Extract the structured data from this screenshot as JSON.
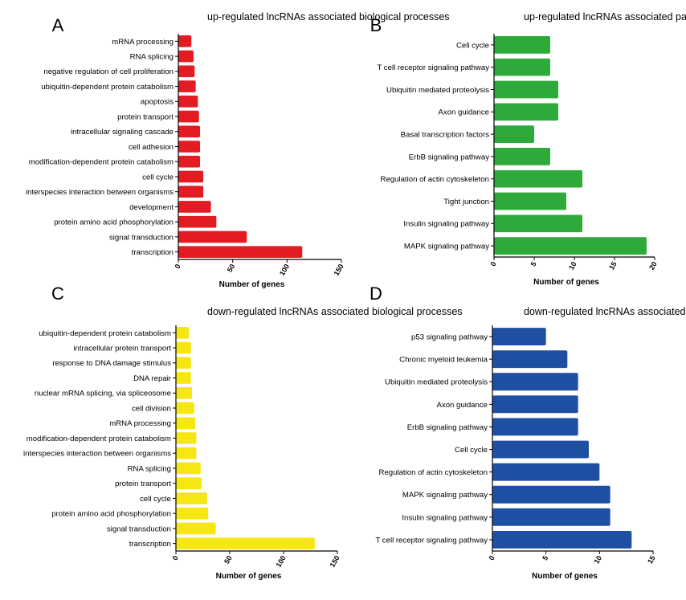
{
  "chart_data": [
    {
      "panel": "A",
      "type": "bar",
      "orientation": "horizontal",
      "title": "up-regulated lncRNAs associated biological processes",
      "xlabel": "Number of genes",
      "ylabel": "",
      "xlim": [
        0,
        150
      ],
      "xticks": [
        0,
        50,
        100,
        150
      ],
      "color": "#e31b23",
      "categories": [
        "mRNA processing",
        "RNA splicing",
        "negative regulation of cell proliferation",
        "ubiquitin-dependent protein catabolism",
        "apoptosis",
        "protein transport",
        "intracellular signaling cascade",
        "cell adhesion",
        "modification-dependent protein catabolism",
        "cell cycle",
        "interspecies interaction between organisms",
        "development",
        "protein amino acid phosphorylation",
        "signal transduction",
        "transcription"
      ],
      "values": [
        12,
        14,
        15,
        16,
        18,
        19,
        20,
        20,
        20,
        23,
        23,
        30,
        35,
        63,
        114
      ]
    },
    {
      "panel": "B",
      "type": "bar",
      "orientation": "horizontal",
      "title": "up-regulated lncRNAs associated pathways",
      "xlabel": "Number of genes",
      "ylabel": "",
      "xlim": [
        0,
        20
      ],
      "xticks": [
        0,
        5,
        10,
        15,
        20
      ],
      "color": "#2eaa3a",
      "categories": [
        "Cell cycle",
        "T cell receptor signaling pathway",
        "Ubiquitin mediated proteolysis",
        "Axon guidance",
        "Basal transcription factors",
        "ErbB signaling pathway",
        "Regulation of actin cytoskeleton",
        "Tight junction",
        "Insulin signaling pathway",
        "MAPK signaling pathway"
      ],
      "values": [
        7,
        7,
        8,
        8,
        5,
        7,
        11,
        9,
        11,
        19
      ]
    },
    {
      "panel": "C",
      "type": "bar",
      "orientation": "horizontal",
      "title": "down-regulated lncRNAs associated biological processes",
      "xlabel": "Number of genes",
      "ylabel": "",
      "xlim": [
        0,
        150
      ],
      "xticks": [
        0,
        50,
        100,
        150
      ],
      "color": "#f5e614",
      "categories": [
        "ubiquitin-dependent protein catabolism",
        "intracellular protein transport",
        "response to DNA damage stimulus",
        "DNA repair",
        "nuclear mRNA splicing, via spliceosome",
        "cell division",
        "mRNA processing",
        "modification-dependent protein catabolism",
        "interspecies interaction between organisms",
        "RNA splicing",
        "protein transport",
        "cell cycle",
        "protein amino acid phosphorylation",
        "signal transduction",
        "transcription"
      ],
      "values": [
        12,
        14,
        14,
        14,
        15,
        17,
        18,
        19,
        19,
        23,
        24,
        29,
        30,
        37,
        129
      ]
    },
    {
      "panel": "D",
      "type": "bar",
      "orientation": "horizontal",
      "title": "down-regulated lncRNAs associated pathways",
      "xlabel": "Number of genes",
      "ylabel": "",
      "xlim": [
        0,
        15
      ],
      "xticks": [
        0,
        5,
        10,
        15
      ],
      "color": "#1f4fa3",
      "categories": [
        "p53 signaling pathway",
        "Chronic myeloid leukemia",
        "Ubiquitin mediated proteolysis",
        "Axon guidance",
        "ErbB signaling pathway",
        "Cell cycle",
        "Regulation of actin cytoskeleton",
        "MAPK signaling pathway",
        "Insulin signaling pathway",
        "T cell receptor signaling pathway"
      ],
      "values": [
        5,
        7,
        8,
        8,
        8,
        9,
        10,
        11,
        11,
        13
      ]
    }
  ]
}
